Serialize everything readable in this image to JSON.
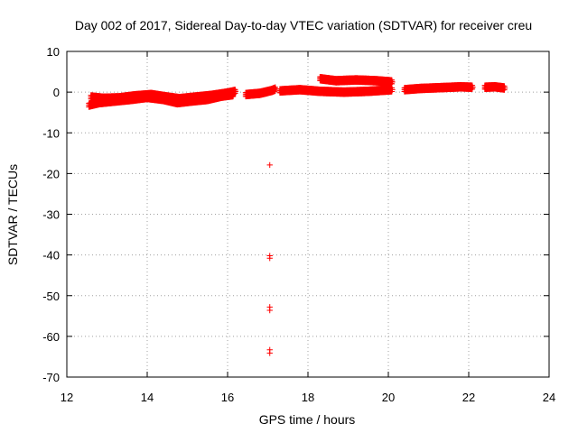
{
  "chart_data": {
    "type": "scatter",
    "title": "Day 002 of 2017, Sidereal Day-to-day VTEC variation (SDTVAR) for receiver creu",
    "xlabel": "GPS time / hours",
    "ylabel": "SDTVAR / TECUs",
    "xlim": [
      12,
      24
    ],
    "ylim": [
      -70,
      10
    ],
    "x_ticks": [
      12,
      14,
      16,
      18,
      20,
      22,
      24
    ],
    "y_ticks": [
      10,
      0,
      -10,
      -20,
      -30,
      -40,
      -50,
      -60,
      -70
    ],
    "grid": true,
    "marker": "plus",
    "color": "#ff0000",
    "dense_tracks": [
      {
        "x": [
          12.55,
          12.8,
          13.2,
          13.6,
          14.0,
          14.4,
          14.75,
          15.1,
          15.5,
          15.85,
          16.15
        ],
        "y": [
          -3.2,
          -2.6,
          -2.2,
          -1.8,
          -1.3,
          -1.8,
          -2.6,
          -2.2,
          -1.8,
          -1.0,
          -0.6
        ]
      },
      {
        "x": [
          12.6,
          12.9,
          13.3,
          13.7,
          14.1,
          14.5,
          14.8,
          15.2,
          15.6,
          16.0,
          16.2
        ],
        "y": [
          -1.2,
          -1.5,
          -1.4,
          -0.9,
          -0.6,
          -1.2,
          -1.6,
          -1.2,
          -0.8,
          -0.2,
          0.2
        ]
      },
      {
        "x": [
          16.45,
          16.8,
          17.1,
          17.2
        ],
        "y": [
          -0.6,
          -0.3,
          0.4,
          0.8
        ]
      },
      {
        "x": [
          17.3,
          17.8,
          18.3,
          18.9,
          19.5,
          20.1
        ],
        "y": [
          0.3,
          0.6,
          0.2,
          0.0,
          0.2,
          0.6
        ]
      },
      {
        "x": [
          18.3,
          18.7,
          19.2,
          19.7,
          20.1
        ],
        "y": [
          3.3,
          2.8,
          3.0,
          2.8,
          2.5
        ]
      },
      {
        "x": [
          20.4,
          20.8,
          21.3,
          21.8,
          22.1
        ],
        "y": [
          0.6,
          0.9,
          1.1,
          1.3,
          1.2
        ]
      },
      {
        "x": [
          22.4,
          22.65,
          22.9
        ],
        "y": [
          1.2,
          1.3,
          1.0
        ]
      }
    ],
    "outliers": [
      {
        "x": 17.05,
        "y": -17.9
      },
      {
        "x": 17.05,
        "y": -40.2
      },
      {
        "x": 17.05,
        "y": -40.8
      },
      {
        "x": 17.05,
        "y": -52.8
      },
      {
        "x": 17.05,
        "y": -53.6
      },
      {
        "x": 17.05,
        "y": -63.3
      },
      {
        "x": 17.05,
        "y": -64.1
      }
    ]
  }
}
